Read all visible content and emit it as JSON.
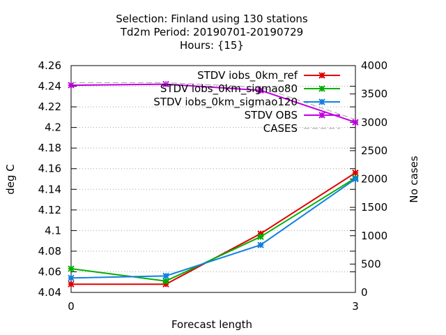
{
  "chart_data": {
    "type": "line",
    "title": [
      "Selection: Finland using   130 stations",
      "Td2m   Period: 20190701-20190729",
      "Hours: {15}"
    ],
    "xlabel": "Forecast length",
    "ylabel": "deg C",
    "y2label": "No cases",
    "xlim": [
      0,
      3
    ],
    "ylim": [
      4.04,
      4.26
    ],
    "y2lim": [
      0,
      4000
    ],
    "xticks": [
      "0",
      "3"
    ],
    "yticks": [
      "4.04",
      "4.06",
      "4.08",
      "4.1",
      "4.12",
      "4.14",
      "4.16",
      "4.18",
      "4.2",
      "4.22",
      "4.24",
      "4.26"
    ],
    "y2ticks": [
      "0",
      "500",
      "1000",
      "1500",
      "2000",
      "2500",
      "3000",
      "3500",
      "4000"
    ],
    "grid": true,
    "legend_position": "top-right",
    "series": [
      {
        "name": "STDV iobs_0km_ref",
        "color": "#e00000",
        "axis": "y",
        "x": [
          0,
          1,
          2,
          3
        ],
        "values": [
          4.048,
          4.048,
          4.097,
          4.156
        ]
      },
      {
        "name": "STDV iobs_0km_sigmao80",
        "color": "#00b000",
        "axis": "y",
        "x": [
          0,
          1,
          2,
          3
        ],
        "values": [
          4.063,
          4.051,
          4.094,
          4.151
        ]
      },
      {
        "name": "STDV iobs_0km_sigmao120",
        "color": "#1080e0",
        "axis": "y",
        "x": [
          0,
          1,
          2,
          3
        ],
        "values": [
          4.054,
          4.056,
          4.086,
          4.15
        ]
      },
      {
        "name": "STDV OBS",
        "color": "#c000e0",
        "axis": "y",
        "x": [
          0,
          1,
          2,
          3
        ],
        "values": [
          4.241,
          4.242,
          4.236,
          4.205
        ]
      },
      {
        "name": "CASES",
        "color": "#a0a0a0",
        "axis": "y2",
        "dashed": true,
        "x": [
          0,
          1,
          2,
          3
        ],
        "values": [
          3700,
          3700,
          3620,
          3050
        ]
      }
    ]
  }
}
